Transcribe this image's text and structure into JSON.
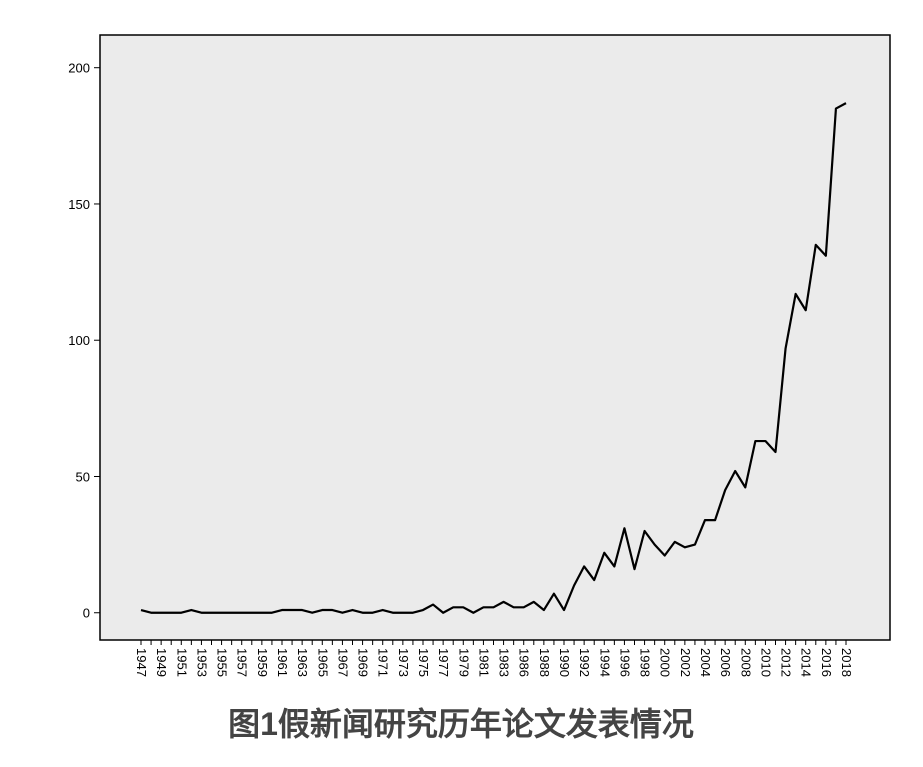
{
  "chart_data": {
    "type": "line",
    "title": "图1假新闻研究历年论文发表情况",
    "categories": [
      "1947",
      null,
      "1949",
      null,
      "1951",
      null,
      "1953",
      null,
      "1955",
      null,
      "1957",
      null,
      "1959",
      null,
      "1961",
      null,
      "1963",
      null,
      "1965",
      null,
      "1967",
      null,
      "1969",
      null,
      "1971",
      null,
      "1973",
      null,
      "1975",
      null,
      "1977",
      null,
      "1979",
      null,
      "1981",
      null,
      "1983",
      null,
      "1986",
      null,
      "1988",
      null,
      "1990",
      null,
      "1992",
      null,
      "1994",
      null,
      "1996",
      null,
      "1998",
      null,
      "2000",
      null,
      "2002",
      null,
      "2004",
      null,
      "2006",
      null,
      "2008",
      null,
      "2010",
      null,
      "2012",
      null,
      "2014",
      null,
      "2016",
      null,
      "2018"
    ],
    "values": [
      1,
      0,
      0,
      0,
      0,
      1,
      0,
      0,
      0,
      0,
      0,
      0,
      0,
      0,
      1,
      1,
      1,
      0,
      1,
      1,
      0,
      1,
      0,
      0,
      1,
      0,
      0,
      0,
      1,
      3,
      0,
      2,
      2,
      0,
      2,
      2,
      4,
      2,
      2,
      4,
      1,
      7,
      1,
      10,
      17,
      12,
      22,
      17,
      31,
      16,
      30,
      25,
      21,
      26,
      24,
      25,
      34,
      34,
      45,
      52,
      46,
      63,
      63,
      59,
      97,
      117,
      111,
      135,
      131,
      185,
      187
    ],
    "color": "#000000",
    "ylim": [
      -10,
      212
    ],
    "yticks": [
      0,
      50,
      100,
      150,
      200
    ]
  }
}
